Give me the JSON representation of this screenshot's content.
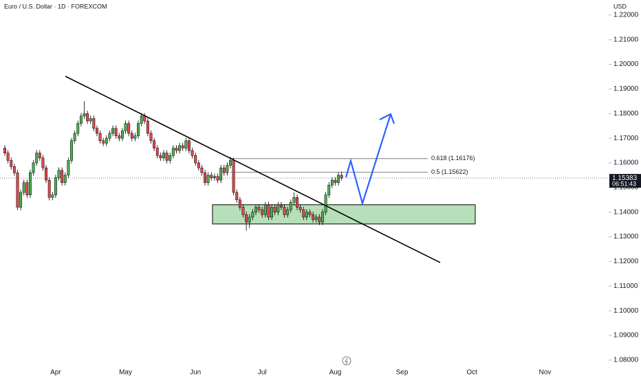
{
  "chart_data": {
    "type": "candlestick",
    "title": "Euro / U.S. Dollar · 1D · FOREXCOM",
    "currency": "USD",
    "categories": [
      null,
      null,
      null,
      null,
      null,
      null,
      null,
      null,
      null,
      null,
      null,
      null,
      null,
      null,
      null,
      null,
      "Apr",
      null,
      null,
      null,
      null,
      null,
      null,
      null,
      null,
      null,
      null,
      null,
      null,
      null,
      null,
      null,
      null,
      null,
      null,
      null,
      null,
      null,
      "May",
      null,
      null,
      null,
      null,
      null,
      null,
      null,
      null,
      null,
      null,
      null,
      null,
      null,
      null,
      null,
      null,
      null,
      null,
      null,
      null,
      null,
      "Jun",
      null,
      null,
      null,
      null,
      null,
      null,
      null,
      null,
      null,
      null,
      null,
      null,
      null,
      null,
      null,
      null,
      null,
      null,
      null,
      null,
      "Jul",
      null,
      null,
      null,
      null,
      null,
      null,
      null,
      null,
      null,
      null,
      null,
      null,
      null,
      null,
      null,
      null,
      null,
      null,
      null,
      null,
      null,
      null,
      "Aug",
      null,
      null,
      null,
      null,
      null,
      null,
      null,
      null,
      null,
      null,
      null,
      null,
      null,
      null,
      null,
      null,
      null,
      null,
      null,
      null,
      "Sep",
      null,
      null,
      null,
      null,
      null,
      null,
      null,
      null,
      null,
      null,
      null,
      null,
      null,
      null,
      null,
      null,
      null,
      null,
      null,
      null,
      null,
      "Oct",
      null,
      null,
      null,
      null,
      null,
      null,
      null,
      null,
      null,
      null,
      null,
      null,
      null,
      null,
      null,
      null,
      null,
      null,
      null,
      null,
      null,
      null,
      "Nov",
      null
    ],
    "open": [
      1.166,
      1.164,
      1.161,
      1.1585,
      1.156,
      1.142,
      1.148,
      1.152,
      1.147,
      1.156,
      1.16,
      1.164,
      1.162,
      1.158,
      1.153,
      1.146,
      1.147,
      1.154,
      1.157,
      1.152,
      1.155,
      1.161,
      1.169,
      1.172,
      1.176,
      1.179,
      1.18,
      1.177,
      1.178,
      1.174,
      1.172,
      1.169,
      1.168,
      1.17,
      1.172,
      1.174,
      1.171,
      1.17,
      1.173,
      1.176,
      1.172,
      1.17,
      1.171,
      1.176,
      1.179,
      1.177,
      1.172,
      1.169,
      1.166,
      1.163,
      1.162,
      1.164,
      1.161,
      1.163,
      1.166,
      1.165,
      1.167,
      1.166,
      1.169,
      1.165,
      1.163,
      1.16,
      1.158,
      1.156,
      1.152,
      1.155,
      1.154,
      1.1545,
      1.153,
      1.158,
      1.156,
      1.159,
      1.161,
      1.148,
      1.145,
      1.142,
      1.139,
      1.136,
      1.138,
      1.14,
      1.142,
      1.141,
      1.139,
      1.143,
      1.138,
      1.142,
      1.14,
      1.143,
      1.142,
      1.139,
      1.141,
      1.144,
      1.146,
      1.142,
      1.141,
      1.138,
      1.14,
      1.139,
      1.137,
      1.138,
      1.136,
      1.14,
      1.147,
      1.151,
      1.153,
      1.152,
      1.155,
      null,
      null,
      null,
      null,
      null,
      null,
      null,
      null,
      null,
      null,
      null,
      null,
      null,
      null,
      null,
      null,
      null,
      null,
      null,
      null,
      null,
      null,
      null,
      null,
      null,
      null,
      null,
      null,
      null,
      null,
      null,
      null,
      null,
      null,
      null,
      null,
      null,
      null,
      null,
      null,
      null,
      null,
      null,
      null,
      null,
      null,
      null,
      null,
      null,
      null,
      null,
      null,
      null,
      null,
      null,
      null,
      null,
      null,
      null,
      null,
      null,
      null,
      null,
      null,
      null
    ],
    "high": [
      1.1672,
      1.1652,
      1.1622,
      1.1597,
      1.1572,
      1.1492,
      1.1532,
      1.1532,
      1.1572,
      1.1612,
      1.1652,
      1.1652,
      1.1632,
      1.1592,
      1.1542,
      1.1482,
      1.1552,
      1.1582,
      1.1582,
      1.1562,
      1.1622,
      1.1702,
      1.1732,
      1.1772,
      1.1802,
      1.185,
      1.1812,
      1.1792,
      1.1792,
      1.1752,
      1.1732,
      1.1702,
      1.1712,
      1.1732,
      1.1752,
      1.1752,
      1.1722,
      1.1742,
      1.1772,
      1.1772,
      1.1732,
      1.1722,
      1.1772,
      1.1802,
      1.1802,
      1.1782,
      1.1732,
      1.1702,
      1.1672,
      1.1642,
      1.1652,
      1.1652,
      1.1642,
      1.1672,
      1.1672,
      1.1682,
      1.1682,
      1.1702,
      1.1702,
      1.1662,
      1.1642,
      1.1612,
      1.1592,
      1.1572,
      1.1562,
      1.1562,
      1.1557,
      1.1557,
      1.1592,
      1.1592,
      1.1602,
      1.1625,
      1.1622,
      1.1492,
      1.1462,
      1.1432,
      1.1402,
      1.1392,
      1.1412,
      1.1432,
      1.1432,
      1.1422,
      1.1442,
      1.1442,
      1.1432,
      1.1432,
      1.1442,
      1.1442,
      1.1432,
      1.1422,
      1.1452,
      1.148,
      1.1472,
      1.1432,
      1.1422,
      1.1412,
      1.1412,
      1.1402,
      1.1392,
      1.1392,
      1.1412,
      1.1482,
      1.1522,
      1.1542,
      1.1542,
      1.1562,
      1.1565,
      null,
      null,
      null,
      null,
      null,
      null,
      null,
      null,
      null,
      null,
      null,
      null,
      null,
      null,
      null,
      null,
      null,
      null,
      null,
      null,
      null,
      null,
      null,
      null,
      null,
      null,
      null,
      null,
      null,
      null,
      null,
      null,
      null,
      null,
      null,
      null,
      null,
      null,
      null,
      null,
      null,
      null,
      null,
      null,
      null,
      null,
      null,
      null,
      null,
      null,
      null,
      null,
      null,
      null,
      null,
      null,
      null,
      null,
      null,
      null,
      null,
      null,
      null,
      null,
      null
    ],
    "low": [
      1.1628,
      1.1598,
      1.1573,
      1.1548,
      1.1408,
      1.1408,
      1.1468,
      1.1458,
      1.1458,
      1.1548,
      1.1588,
      1.1608,
      1.1568,
      1.1518,
      1.1448,
      1.1448,
      1.1458,
      1.1528,
      1.1508,
      1.1508,
      1.1538,
      1.1598,
      1.1678,
      1.1708,
      1.1748,
      1.1778,
      1.1758,
      1.1758,
      1.1728,
      1.1708,
      1.1678,
      1.1668,
      1.1668,
      1.1688,
      1.1708,
      1.1698,
      1.1688,
      1.1688,
      1.1718,
      1.1708,
      1.1688,
      1.1688,
      1.1698,
      1.1748,
      1.1758,
      1.1708,
      1.1678,
      1.1648,
      1.1618,
      1.1608,
      1.1608,
      1.1598,
      1.1598,
      1.1618,
      1.1638,
      1.1638,
      1.1648,
      1.1648,
      1.1638,
      1.1618,
      1.1588,
      1.1568,
      1.1548,
      1.1508,
      1.1508,
      1.1528,
      1.1528,
      1.1518,
      1.1518,
      1.1548,
      1.1548,
      1.1578,
      1.1468,
      1.1438,
      1.1408,
      1.1378,
      1.1325,
      1.1335,
      1.1368,
      1.1388,
      1.1398,
      1.1378,
      1.1378,
      1.1368,
      1.1368,
      1.1388,
      1.1388,
      1.1408,
      1.1378,
      1.1378,
      1.1398,
      1.1428,
      1.1408,
      1.1398,
      1.1368,
      1.1368,
      1.1378,
      1.1358,
      1.1358,
      1.1348,
      1.1348,
      1.1388,
      1.1458,
      1.1498,
      1.1508,
      1.1508,
      1.1528,
      null,
      null,
      null,
      null,
      null,
      null,
      null,
      null,
      null,
      null,
      null,
      null,
      null,
      null,
      null,
      null,
      null,
      null,
      null,
      null,
      null,
      null,
      null,
      null,
      null,
      null,
      null,
      null,
      null,
      null,
      null,
      null,
      null,
      null,
      null,
      null,
      null,
      null,
      null,
      null,
      null,
      null,
      null,
      null,
      null,
      null,
      null,
      null,
      null,
      null,
      null,
      null,
      null,
      null,
      null,
      null,
      null,
      null,
      null,
      null,
      null,
      null,
      null,
      null,
      null
    ],
    "close": [
      1.164,
      1.161,
      1.1585,
      1.156,
      1.142,
      1.148,
      1.152,
      1.147,
      1.156,
      1.16,
      1.164,
      1.162,
      1.158,
      1.153,
      1.146,
      1.147,
      1.154,
      1.157,
      1.152,
      1.155,
      1.161,
      1.169,
      1.172,
      1.176,
      1.179,
      1.18,
      1.177,
      1.178,
      1.174,
      1.172,
      1.169,
      1.168,
      1.17,
      1.172,
      1.174,
      1.171,
      1.17,
      1.173,
      1.176,
      1.172,
      1.17,
      1.171,
      1.176,
      1.179,
      1.177,
      1.172,
      1.169,
      1.166,
      1.163,
      1.162,
      1.164,
      1.161,
      1.163,
      1.166,
      1.165,
      1.167,
      1.166,
      1.169,
      1.165,
      1.163,
      1.16,
      1.158,
      1.156,
      1.152,
      1.155,
      1.154,
      1.1545,
      1.153,
      1.158,
      1.156,
      1.159,
      1.161,
      1.148,
      1.145,
      1.142,
      1.139,
      1.136,
      1.138,
      1.14,
      1.142,
      1.141,
      1.139,
      1.143,
      1.138,
      1.142,
      1.14,
      1.143,
      1.142,
      1.139,
      1.141,
      1.144,
      1.146,
      1.142,
      1.141,
      1.138,
      1.14,
      1.139,
      1.137,
      1.138,
      1.136,
      1.14,
      1.147,
      1.151,
      1.153,
      1.152,
      1.155,
      1.15383,
      null,
      null,
      null,
      null,
      null,
      null,
      null,
      null,
      null,
      null,
      null,
      null,
      null,
      null,
      null,
      null,
      null,
      null,
      null,
      null,
      null,
      null,
      null,
      null,
      null,
      null,
      null,
      null,
      null,
      null,
      null,
      null,
      null,
      null,
      null,
      null,
      null,
      null,
      null,
      null,
      null,
      null,
      null,
      null,
      null,
      null,
      null,
      null,
      null,
      null,
      null,
      null,
      null,
      null,
      null,
      null,
      null,
      null,
      null,
      null,
      null,
      null,
      null,
      null,
      null
    ],
    "up_color": "#4caf50",
    "down_color": "#e0474c",
    "ylim": [
      1.0769,
      1.2261
    ],
    "yticks": [
      {
        "value": 1.08,
        "label": "1.08000"
      },
      {
        "value": 1.09,
        "label": "1.09000"
      },
      {
        "value": 1.1,
        "label": "1.10000"
      },
      {
        "value": 1.11,
        "label": "1.11000"
      },
      {
        "value": 1.12,
        "label": "1.12000"
      },
      {
        "value": 1.13,
        "label": "1.13000"
      },
      {
        "value": 1.14,
        "label": "1.14000"
      },
      {
        "value": 1.15,
        "label": "1.15000"
      },
      {
        "value": 1.16,
        "label": "1.16000"
      },
      {
        "value": 1.17,
        "label": "1.17000"
      },
      {
        "value": 1.18,
        "label": "1.18000"
      },
      {
        "value": 1.19,
        "label": "1.19000"
      },
      {
        "value": 1.2,
        "label": "1.20000"
      },
      {
        "value": 1.21,
        "label": "1.21000"
      },
      {
        "value": 1.22,
        "label": "1.22000"
      }
    ],
    "grid": false,
    "fib_levels": [
      {
        "price": 1.16176,
        "label": "0.618 (1.16176)"
      },
      {
        "price": 1.15622,
        "label": "0.5 (1.15622)"
      }
    ],
    "zone": [
      1.13522,
      1.14303
    ],
    "countdown": "06:51:43"
  }
}
